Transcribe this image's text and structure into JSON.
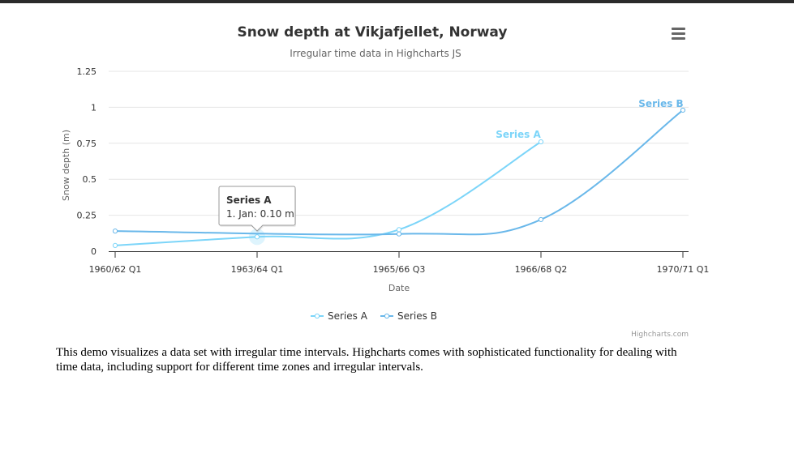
{
  "colors": {
    "series_a": "#7cd5f9",
    "series_b": "#6ab8ea",
    "grid": "#e6e6e6",
    "axis": "#333333"
  },
  "menu": {
    "icon": "hamburger-menu-icon"
  },
  "tooltip": {
    "series": "Series A",
    "text": "1. Jan: 0.10 m",
    "point_index": 1
  },
  "credits": "Highcharts.com",
  "description": "This demo visualizes a data set with irregular time intervals. Highcharts comes with sophisticated functionality for dealing with time data, including support for different time zones and irregular intervals.",
  "chart_data": {
    "type": "line",
    "title": "Snow depth at Vikjafjellet, Norway",
    "subtitle": "Irregular time data in Highcharts JS",
    "xlabel": "Date",
    "ylabel": "Snow depth (m)",
    "x_ticks": [
      "1960/62 Q1",
      "1963/64 Q1",
      "1965/66 Q3",
      "1966/68 Q2",
      "1970/71 Q1"
    ],
    "y_ticks": [
      "0",
      "0.25",
      "0.5",
      "0.75",
      "1",
      "1.25"
    ],
    "ylim": [
      0,
      1.25
    ],
    "grid": true,
    "legend": "bottom-center",
    "series": [
      {
        "name": "Series A",
        "x": [
          0,
          1,
          2,
          3
        ],
        "y": [
          0.04,
          0.1,
          0.15,
          0.76
        ]
      },
      {
        "name": "Series B",
        "x": [
          0,
          2,
          3,
          4
        ],
        "y": [
          0.14,
          0.12,
          0.22,
          0.98
        ]
      }
    ]
  }
}
